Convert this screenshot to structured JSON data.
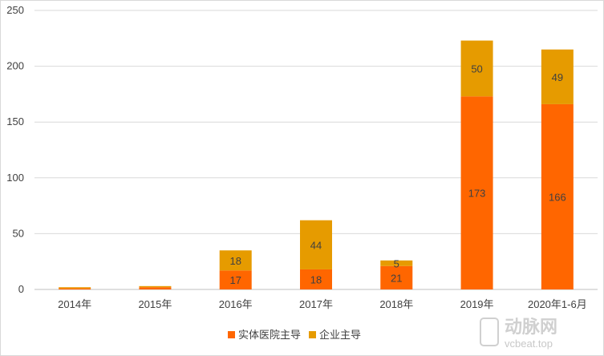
{
  "chart_data": {
    "type": "bar",
    "stacked": true,
    "categories": [
      "2014年",
      "2015年",
      "2016年",
      "2017年",
      "2018年",
      "2019年",
      "2020年1-6月"
    ],
    "series": [
      {
        "name": "实体医院主导",
        "color": "#ff6600",
        "values": [
          1,
          2,
          17,
          18,
          21,
          173,
          166
        ],
        "labels": [
          "",
          "",
          "17",
          "18",
          "21",
          "173",
          "166"
        ]
      },
      {
        "name": "企业主导",
        "color": "#e69b00",
        "values": [
          1,
          1,
          18,
          44,
          5,
          50,
          49
        ],
        "labels": [
          "",
          "",
          "18",
          "44",
          "5",
          "50",
          "49"
        ]
      }
    ],
    "ylim": [
      0,
      250
    ],
    "yticks": [
      0,
      50,
      100,
      150,
      200,
      250
    ],
    "grid": true,
    "legend_position": "bottom"
  },
  "watermark": {
    "logo_text": "动脉网",
    "url_text": "vcbeat.top"
  }
}
